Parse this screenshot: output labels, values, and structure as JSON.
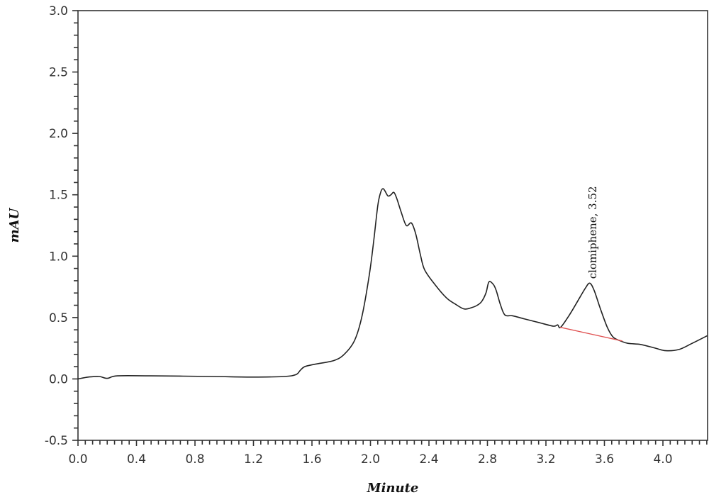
{
  "chart_data": {
    "type": "line",
    "title": "",
    "xlabel": "Minute",
    "ylabel": "mAU",
    "xlim": [
      0.0,
      4.3
    ],
    "ylim": [
      -0.5,
      3.0
    ],
    "grid": false,
    "legend": null,
    "x_ticks": [
      "0.0",
      "0.4",
      "0.8",
      "1.2",
      "1.6",
      "2.0",
      "2.4",
      "2.8",
      "3.2",
      "3.6",
      "4.0"
    ],
    "y_ticks": [
      "-0.5",
      "0.0",
      "0.5",
      "1.0",
      "1.5",
      "2.0",
      "2.5",
      "3.0"
    ],
    "series": [
      {
        "name": "chromatogram",
        "color": "#222222",
        "x": [
          0.0,
          0.07,
          0.145,
          0.2,
          0.27,
          0.5,
          0.92,
          1.2,
          1.41,
          1.49,
          1.52,
          1.55,
          1.62,
          1.75,
          1.82,
          1.89,
          1.94,
          1.99,
          2.02,
          2.05,
          2.07,
          2.085,
          2.1,
          2.12,
          2.14,
          2.16,
          2.18,
          2.21,
          2.245,
          2.28,
          2.31,
          2.34,
          2.37,
          2.44,
          2.52,
          2.58,
          2.64,
          2.69,
          2.73,
          2.76,
          2.79,
          2.81,
          2.84,
          2.86,
          2.89,
          2.92,
          2.97,
          3.05,
          3.15,
          3.25,
          3.28,
          3.3,
          3.36,
          3.43,
          3.47,
          3.5,
          3.53,
          3.57,
          3.62,
          3.66,
          3.71,
          3.76,
          3.85,
          3.95,
          4.02,
          4.11,
          4.2,
          4.3
        ],
        "y": [
          0.0,
          0.015,
          0.02,
          0.005,
          0.025,
          0.025,
          0.02,
          0.015,
          0.02,
          0.035,
          0.07,
          0.1,
          0.12,
          0.15,
          0.2,
          0.31,
          0.5,
          0.83,
          1.1,
          1.41,
          1.52,
          1.55,
          1.53,
          1.49,
          1.5,
          1.52,
          1.47,
          1.36,
          1.25,
          1.27,
          1.18,
          1.02,
          0.89,
          0.77,
          0.66,
          0.61,
          0.57,
          0.58,
          0.6,
          0.63,
          0.7,
          0.79,
          0.77,
          0.72,
          0.6,
          0.52,
          0.515,
          0.49,
          0.46,
          0.43,
          0.44,
          0.42,
          0.52,
          0.66,
          0.74,
          0.78,
          0.72,
          0.58,
          0.42,
          0.34,
          0.31,
          0.29,
          0.28,
          0.25,
          0.23,
          0.24,
          0.29,
          0.35
        ]
      },
      {
        "name": "integration baseline",
        "color": "#e05050",
        "x": [
          3.3,
          3.72
        ],
        "y": [
          0.42,
          0.31
        ]
      }
    ],
    "annotations": [
      {
        "text": "clomiphene, 3.52",
        "x": 3.52,
        "y": 0.85,
        "rotation": -90
      }
    ]
  }
}
